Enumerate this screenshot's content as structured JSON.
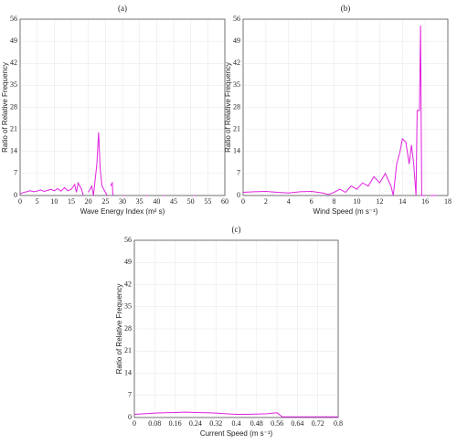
{
  "chart_data": [
    {
      "type": "line",
      "title": "(a)",
      "xlabel": "Wave Energy Index (m² s)",
      "ylabel": "Ratio of Relative Frequency",
      "color": "#e020e0",
      "grid": true,
      "xlim": [
        0,
        60
      ],
      "xticks": [
        0,
        5,
        10,
        15,
        20,
        25,
        30,
        35,
        40,
        45,
        50,
        55,
        60
      ],
      "ylim": [
        0,
        56
      ],
      "yticks": [
        0,
        7,
        14,
        21,
        28,
        35,
        42,
        49,
        56
      ],
      "x": [
        0,
        1,
        2,
        3,
        4,
        5,
        6,
        7,
        8,
        9,
        10,
        11,
        12,
        13,
        14,
        15,
        16,
        16.5,
        17,
        18,
        18.5,
        19,
        20,
        21,
        21.5,
        22,
        22.5,
        23,
        23.5,
        24,
        25,
        25.5,
        26,
        26.5,
        27,
        27.2,
        28,
        30,
        30.5,
        33,
        37,
        37.5,
        40,
        42,
        42.5,
        45,
        51,
        51.5
      ],
      "values": [
        0.5,
        1,
        1.2,
        1.5,
        1.2,
        1.4,
        1.8,
        1.3,
        1.6,
        2,
        1.5,
        2.2,
        1.4,
        2.5,
        1.5,
        2,
        3.5,
        1,
        4,
        2,
        0,
        null,
        1,
        3,
        0,
        5,
        10,
        20,
        8,
        3,
        1,
        0,
        null,
        3,
        4,
        0,
        null,
        0,
        0,
        null,
        0,
        0,
        null,
        0,
        0,
        null,
        0,
        0
      ]
    },
    {
      "type": "line",
      "title": "(b)",
      "xlabel": "Wind Speed (m s⁻¹)",
      "ylabel": "Ratio of Relative Frequency",
      "color": "#e020e0",
      "grid": true,
      "xlim": [
        0,
        18
      ],
      "xticks": [
        0,
        2,
        4,
        6,
        8,
        10,
        12,
        14,
        16,
        18
      ],
      "ylim": [
        0,
        56
      ],
      "yticks": [
        0,
        7,
        14,
        21,
        28,
        35,
        42,
        49,
        56
      ],
      "x": [
        0,
        1,
        2,
        3,
        4,
        5,
        6,
        7,
        7.5,
        8,
        8.5,
        9,
        9.5,
        10,
        10.5,
        11,
        11.5,
        12,
        12.5,
        13,
        13.2,
        13.5,
        13.8,
        14,
        14.3,
        14.6,
        14.8,
        15,
        15.2,
        15.3,
        15.5,
        15.6,
        15.7,
        16,
        16.2,
        16.5,
        17
      ],
      "values": [
        1,
        1.2,
        1.3,
        1,
        0.8,
        1.2,
        1.3,
        0.8,
        0.3,
        1,
        2,
        1,
        3,
        2,
        4,
        3,
        6,
        4,
        7,
        3,
        0,
        10,
        14,
        18,
        17,
        10,
        16,
        10,
        0,
        27,
        27,
        54,
        0,
        0,
        null,
        0,
        0
      ]
    },
    {
      "type": "line",
      "title": "(c)",
      "xlabel": "Current Speed (m s⁻¹)",
      "ylabel": "Ratio of Relative Frequency",
      "color": "#e020e0",
      "grid": true,
      "xlim": [
        0,
        0.8
      ],
      "xticks": [
        0,
        0.08,
        0.16,
        0.24,
        0.32,
        0.4,
        0.48,
        0.56,
        0.64,
        0.72,
        0.8
      ],
      "ylim": [
        0,
        56
      ],
      "yticks": [
        0,
        7,
        14,
        21,
        28,
        35,
        42,
        49,
        56
      ],
      "x": [
        0,
        0.04,
        0.08,
        0.12,
        0.16,
        0.2,
        0.24,
        0.28,
        0.32,
        0.36,
        0.4,
        0.44,
        0.48,
        0.52,
        0.56,
        0.58,
        0.6,
        0.7,
        0.8
      ],
      "values": [
        1,
        1.2,
        1.4,
        1.5,
        1.6,
        1.7,
        1.6,
        1.5,
        1.4,
        1.2,
        1,
        1,
        1.1,
        1.2,
        1.5,
        0.2,
        0.2,
        0.2,
        0.2
      ]
    }
  ]
}
